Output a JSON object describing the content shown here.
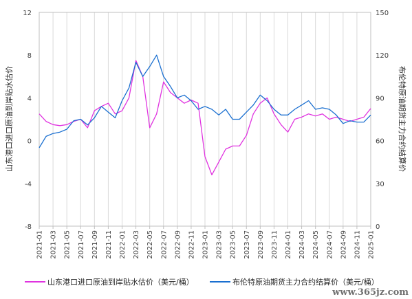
{
  "chart_data": {
    "type": "line",
    "title": "",
    "ylabel_left": "山东港口进口原油到岸贴水估价",
    "ylabel_right": "布伦特原油期货主力合约结算价",
    "ylim_left": [
      -8,
      12
    ],
    "ylim_right": [
      0,
      150
    ],
    "yticks_left": [
      "-8",
      "-4",
      "0",
      "4",
      "8",
      "12"
    ],
    "yticks_right": [
      "0",
      "30",
      "60",
      "90",
      "120",
      "150"
    ],
    "xticks": [
      "2021-01",
      "2021-03",
      "2021-05",
      "2021-07",
      "2021-09",
      "2021-11",
      "2022-01",
      "2022-03",
      "2022-05",
      "2022-07",
      "2022-09",
      "2022-11",
      "2023-01",
      "2023-03",
      "2023-05",
      "2023-07",
      "2023-09",
      "2023-11",
      "2024-01",
      "2024-03",
      "2024-05",
      "2024-07",
      "2024-09",
      "2024-11",
      "2025-01"
    ],
    "grid": "vertical",
    "legend_position": "bottom",
    "series": [
      {
        "name": "山东港口进口原油到岸贴水估价（美元/桶）",
        "axis": "left",
        "color": "#e033e0",
        "x": [
          "2021-01",
          "2021-02",
          "2021-03",
          "2021-04",
          "2021-05",
          "2021-06",
          "2021-07",
          "2021-08",
          "2021-09",
          "2021-10",
          "2021-11",
          "2021-12",
          "2022-01",
          "2022-02",
          "2022-03",
          "2022-04",
          "2022-05",
          "2022-06",
          "2022-07",
          "2022-08",
          "2022-09",
          "2022-10",
          "2022-11",
          "2022-12",
          "2023-01",
          "2023-02",
          "2023-03",
          "2023-04",
          "2023-05",
          "2023-06",
          "2023-07",
          "2023-08",
          "2023-09",
          "2023-10",
          "2023-11",
          "2023-12",
          "2024-01",
          "2024-02",
          "2024-03",
          "2024-04",
          "2024-05",
          "2024-06",
          "2024-07",
          "2024-08",
          "2024-09",
          "2024-10",
          "2024-11",
          "2024-12",
          "2025-01"
        ],
        "y": [
          2.5,
          1.8,
          1.5,
          1.4,
          1.5,
          1.8,
          2.0,
          1.2,
          2.8,
          3.2,
          3.5,
          2.5,
          2.8,
          4.0,
          7.5,
          6.0,
          1.2,
          2.5,
          5.5,
          4.5,
          4.0,
          3.5,
          3.8,
          3.5,
          -1.5,
          -3.2,
          -2.0,
          -0.8,
          -0.5,
          -0.5,
          0.5,
          2.5,
          3.5,
          4.0,
          2.5,
          1.5,
          0.8,
          2.0,
          2.2,
          2.5,
          2.3,
          2.5,
          2.0,
          2.2,
          2.0,
          1.8,
          2.0,
          2.2,
          3.0
        ]
      },
      {
        "name": "布伦特原油期货主力合约结算价（美元/桶）",
        "axis": "right",
        "color": "#1a6fd0",
        "x": [
          "2021-01",
          "2021-02",
          "2021-03",
          "2021-04",
          "2021-05",
          "2021-06",
          "2021-07",
          "2021-08",
          "2021-09",
          "2021-10",
          "2021-11",
          "2021-12",
          "2022-01",
          "2022-02",
          "2022-03",
          "2022-04",
          "2022-05",
          "2022-06",
          "2022-07",
          "2022-08",
          "2022-09",
          "2022-10",
          "2022-11",
          "2022-12",
          "2023-01",
          "2023-02",
          "2023-03",
          "2023-04",
          "2023-05",
          "2023-06",
          "2023-07",
          "2023-08",
          "2023-09",
          "2023-10",
          "2023-11",
          "2023-12",
          "2024-01",
          "2024-02",
          "2024-03",
          "2024-04",
          "2024-05",
          "2024-06",
          "2024-07",
          "2024-08",
          "2024-09",
          "2024-10",
          "2024-11",
          "2024-12",
          "2025-01"
        ],
        "y": [
          55,
          63,
          65,
          66,
          68,
          74,
          75,
          71,
          76,
          84,
          80,
          76,
          88,
          97,
          115,
          105,
          112,
          120,
          105,
          98,
          90,
          92,
          88,
          82,
          84,
          82,
          78,
          82,
          75,
          75,
          80,
          85,
          92,
          88,
          82,
          78,
          78,
          82,
          85,
          88,
          82,
          83,
          82,
          78,
          72,
          74,
          73,
          73,
          78
        ]
      }
    ]
  },
  "legend": {
    "item1_label": "山东港口进口原油到岸贴水估价（美元/桶）",
    "item2_label": "布伦特原油期货主力合约结算价（美元/桶）"
  },
  "watermark_text": "www.365jz.com"
}
